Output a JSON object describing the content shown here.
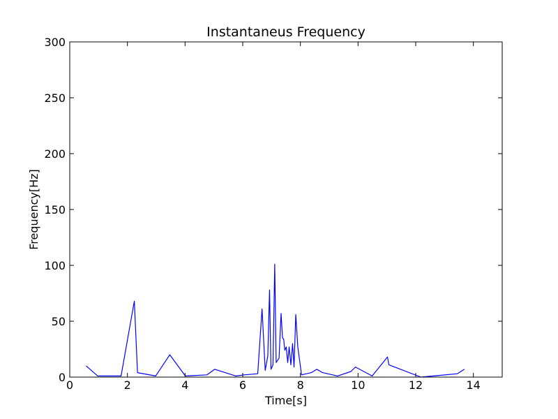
{
  "chart_data": {
    "type": "line",
    "title": "Instantaneus Frequency",
    "xlabel": "Time[s]",
    "ylabel": "Frequency[Hz]",
    "xlim": [
      0,
      15
    ],
    "ylim": [
      0,
      300
    ],
    "xticks": [
      0,
      2,
      4,
      6,
      8,
      10,
      12,
      14
    ],
    "yticks": [
      0,
      50,
      100,
      150,
      200,
      250,
      300
    ],
    "grid": false,
    "series": [
      {
        "color": "#0000ff",
        "x": [
          0.57,
          0.97,
          1.78,
          2.24,
          2.35,
          2.98,
          3.47,
          4.01,
          4.76,
          5.03,
          5.76,
          6.05,
          6.52,
          6.67,
          6.78,
          6.87,
          6.93,
          6.98,
          7.05,
          7.11,
          7.16,
          7.26,
          7.33,
          7.38,
          7.42,
          7.46,
          7.51,
          7.56,
          7.61,
          7.67,
          7.73,
          7.78,
          7.84,
          7.91,
          8.04,
          8.38,
          8.57,
          8.77,
          9.29,
          9.75,
          9.91,
          10.49,
          11.02,
          11.07,
          12.18,
          13.44,
          13.69
        ],
        "y": [
          10,
          1,
          1,
          68,
          4,
          1,
          20,
          1,
          2,
          7,
          1,
          2,
          3,
          61,
          6,
          19,
          78,
          7,
          11,
          101,
          13,
          17,
          57,
          35,
          34,
          24,
          27,
          13,
          27,
          11,
          30,
          9,
          56,
          27,
          2,
          4,
          7,
          4,
          1,
          5,
          9,
          1,
          18,
          11,
          0,
          3,
          7
        ]
      }
    ]
  }
}
